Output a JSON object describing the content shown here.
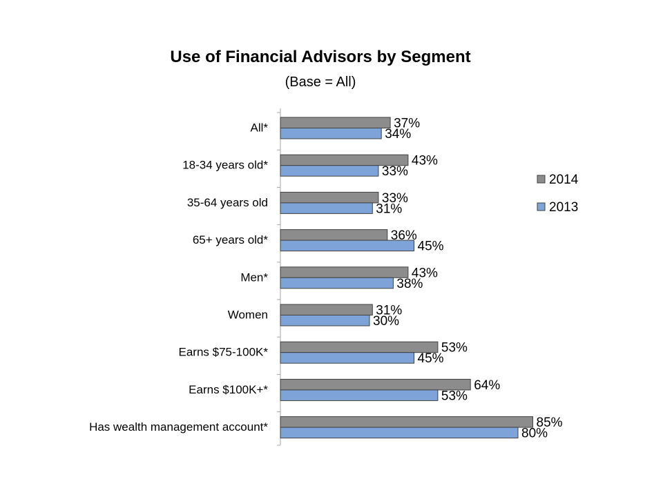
{
  "chart_data": {
    "type": "bar",
    "orientation": "horizontal",
    "title": "Use of Financial Advisors by Segment",
    "subtitle": "(Base = All)",
    "categories": [
      "All*",
      "18-34 years old*",
      "35-64 years old",
      "65+ years old*",
      "Men*",
      "Women",
      "Earns $75-100K*",
      "Earns $100K+*",
      "Has wealth management account*"
    ],
    "series": [
      {
        "name": "2014",
        "color": "#8c8c8c",
        "values": [
          37,
          43,
          33,
          36,
          43,
          31,
          53,
          64,
          85
        ],
        "labels": [
          "37%",
          "43%",
          "33%",
          "36%",
          "43%",
          "31%",
          "53%",
          "64%",
          "85%"
        ]
      },
      {
        "name": "2013",
        "color": "#7da3d8",
        "values": [
          34,
          33,
          31,
          45,
          38,
          30,
          45,
          53,
          80
        ],
        "labels": [
          "34%",
          "33%",
          "31%",
          "45%",
          "38%",
          "30%",
          "45%",
          "53%",
          "80%"
        ]
      }
    ],
    "xlim": [
      0,
      100
    ],
    "grid": false,
    "legend_position": "right",
    "bar_stroke_color": "#404040",
    "axis_color": "#a6a6a6"
  }
}
